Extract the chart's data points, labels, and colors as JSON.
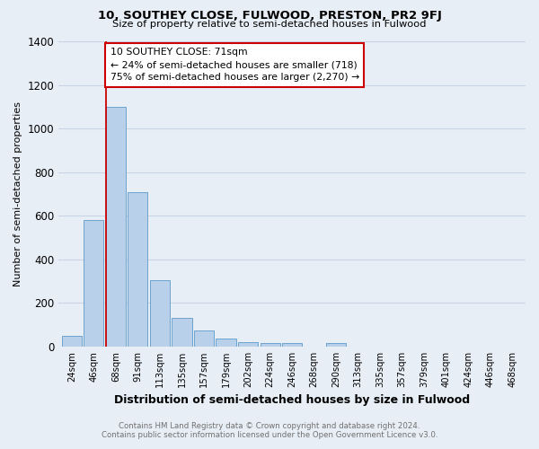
{
  "title": "10, SOUTHEY CLOSE, FULWOOD, PRESTON, PR2 9FJ",
  "subtitle": "Size of property relative to semi-detached houses in Fulwood",
  "xlabel": "Distribution of semi-detached houses by size in Fulwood",
  "ylabel": "Number of semi-detached properties",
  "footer_line1": "Contains HM Land Registry data © Crown copyright and database right 2024.",
  "footer_line2": "Contains public sector information licensed under the Open Government Licence v3.0.",
  "categories": [
    "24sqm",
    "46sqm",
    "68sqm",
    "91sqm",
    "113sqm",
    "135sqm",
    "157sqm",
    "179sqm",
    "202sqm",
    "224sqm",
    "246sqm",
    "268sqm",
    "290sqm",
    "313sqm",
    "335sqm",
    "357sqm",
    "379sqm",
    "401sqm",
    "424sqm",
    "446sqm",
    "468sqm"
  ],
  "values": [
    50,
    580,
    1100,
    710,
    305,
    130,
    75,
    35,
    20,
    15,
    15,
    0,
    15,
    0,
    0,
    0,
    0,
    0,
    0,
    0,
    0
  ],
  "bar_color": "#b8d0ea",
  "bar_edge_color": "#6ba3cc",
  "grid_color": "#c8d4e4",
  "bg_color": "#e8eef6",
  "annotation_line1": "10 SOUTHEY CLOSE: 71sqm",
  "annotation_line2": "← 24% of semi-detached houses are smaller (718)",
  "annotation_line3": "75% of semi-detached houses are larger (2,270) →",
  "marker_bar_index": 2,
  "ylim": [
    0,
    1400
  ],
  "yticks": [
    0,
    200,
    400,
    600,
    800,
    1000,
    1200,
    1400
  ]
}
